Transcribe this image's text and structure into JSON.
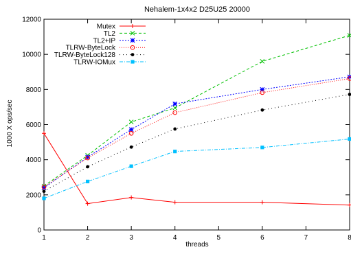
{
  "chart_data": {
    "type": "line",
    "title": "Nehalem-1x4x2 D25U25 20000",
    "xlabel": "threads",
    "ylabel": "1000 X ops/sec",
    "xlim": [
      1,
      8
    ],
    "ylim": [
      0,
      12000
    ],
    "xticks": [
      1,
      2,
      3,
      4,
      5,
      6,
      7,
      8
    ],
    "yticks": [
      0,
      2000,
      4000,
      6000,
      8000,
      10000,
      12000
    ],
    "x": [
      1,
      2,
      3,
      4,
      6,
      8
    ],
    "grid": false,
    "legend_position": "top-left",
    "series": [
      {
        "name": "Mutex",
        "color": "#ff0000",
        "marker": "plus",
        "dash": "",
        "values": [
          5500,
          1500,
          1850,
          1580,
          1580,
          1420
        ]
      },
      {
        "name": "TL2",
        "color": "#00c000",
        "marker": "cross",
        "dash": "4,3",
        "values": [
          2500,
          4250,
          6150,
          6950,
          9600,
          11080
        ]
      },
      {
        "name": "TL2+IP",
        "color": "#0000ff",
        "marker": "star",
        "dash": "2,2",
        "values": [
          2400,
          4150,
          5720,
          7180,
          8000,
          8720
        ]
      },
      {
        "name": "TLRW-ByteLock",
        "color": "#ff0000",
        "marker": "circle",
        "dash": "1,2",
        "values": [
          2450,
          4100,
          5500,
          6680,
          7820,
          8620
        ]
      },
      {
        "name": "TLRW-ByteLock128",
        "color": "#000000",
        "marker": "dot",
        "dash": "1,4",
        "values": [
          2200,
          3600,
          4720,
          5750,
          6830,
          7720
        ]
      },
      {
        "name": "TLRW-IOMux",
        "color": "#00c0ff",
        "marker": "square",
        "dash": "5,2,1,2",
        "values": [
          1800,
          2760,
          3630,
          4470,
          4700,
          5180
        ]
      }
    ]
  }
}
